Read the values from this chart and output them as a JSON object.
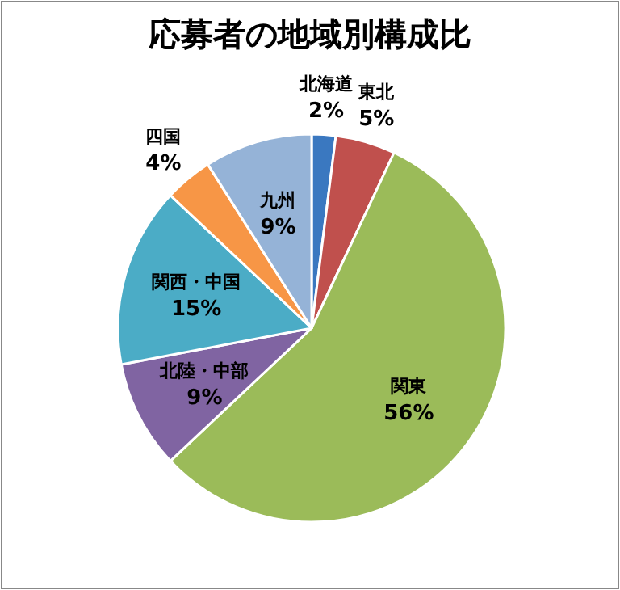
{
  "chart_data": {
    "type": "pie",
    "title": "応募者の地域別構成比",
    "categories": [
      "北海道",
      "東北",
      "関東",
      "北陸・中部",
      "関西・中国",
      "四国",
      "九州"
    ],
    "values": [
      2,
      5,
      56,
      9,
      15,
      4,
      9
    ],
    "value_labels": [
      "2%",
      "5%",
      "56%",
      "9%",
      "15%",
      "4%",
      "9%"
    ],
    "colors": [
      "#3a78c0",
      "#c0504d",
      "#9bbb59",
      "#8064a2",
      "#4bacc6",
      "#f79646",
      "#95b3d7"
    ],
    "legend": false
  }
}
